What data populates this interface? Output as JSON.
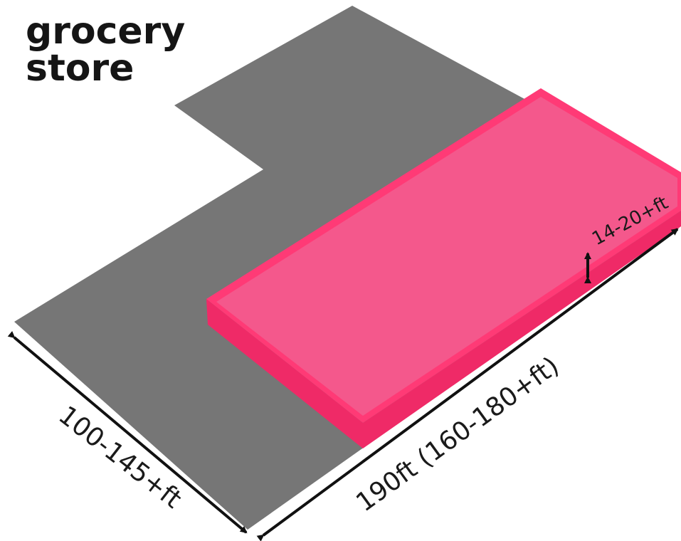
{
  "title": {
    "line1": "grocery",
    "line2": "store"
  },
  "dimensions": {
    "lot_depth": "100-145+ft",
    "building_length": "190ft (160-180+ft)",
    "building_height": "14-20+ft"
  },
  "colors": {
    "lot": "#767676",
    "building_top": "#f4588c",
    "building_side": "#ef2a67",
    "building_rim": "#ff3a76",
    "dimension_line": "#111111"
  }
}
